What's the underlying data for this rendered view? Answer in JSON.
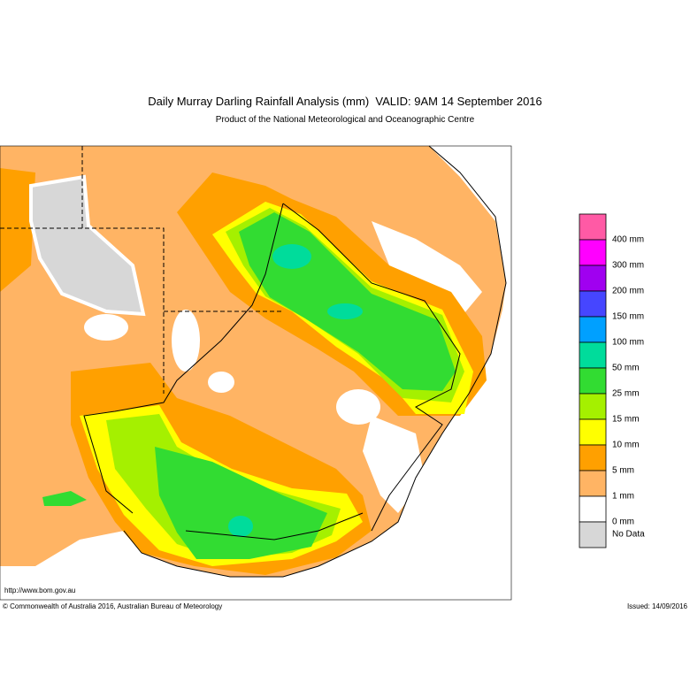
{
  "header": {
    "title": "Daily Murray Darling Rainfall Analysis (mm)  VALID: 9AM 14 September 2016",
    "subtitle": "Product of the National Meteorological and Oceanographic Centre"
  },
  "legend": {
    "items": [
      {
        "label": "400 mm",
        "color": "#ff5aa5"
      },
      {
        "label": "300 mm",
        "color": "#ff00ff"
      },
      {
        "label": "200 mm",
        "color": "#a000f0"
      },
      {
        "label": "150 mm",
        "color": "#4646ff"
      },
      {
        "label": "100 mm",
        "color": "#00a0ff"
      },
      {
        "label": "50 mm",
        "color": "#00dc9b"
      },
      {
        "label": "25 mm",
        "color": "#32dc32"
      },
      {
        "label": "15 mm",
        "color": "#a5f000"
      },
      {
        "label": "10 mm",
        "color": "#ffff00"
      },
      {
        "label": "5 mm",
        "color": "#ffa000"
      },
      {
        "label": "1 mm",
        "color": "#ffb464"
      },
      {
        "label": "0 mm",
        "color": "#ffffff"
      },
      {
        "label": "No Data",
        "color": "#d7d7d7"
      }
    ]
  },
  "footer": {
    "url": "http://www.bom.gov.au",
    "copyright": "© Commonwealth of Australia 2016, Australian Bureau of Meteorology",
    "issued": "Issued: 14/09/2016"
  }
}
